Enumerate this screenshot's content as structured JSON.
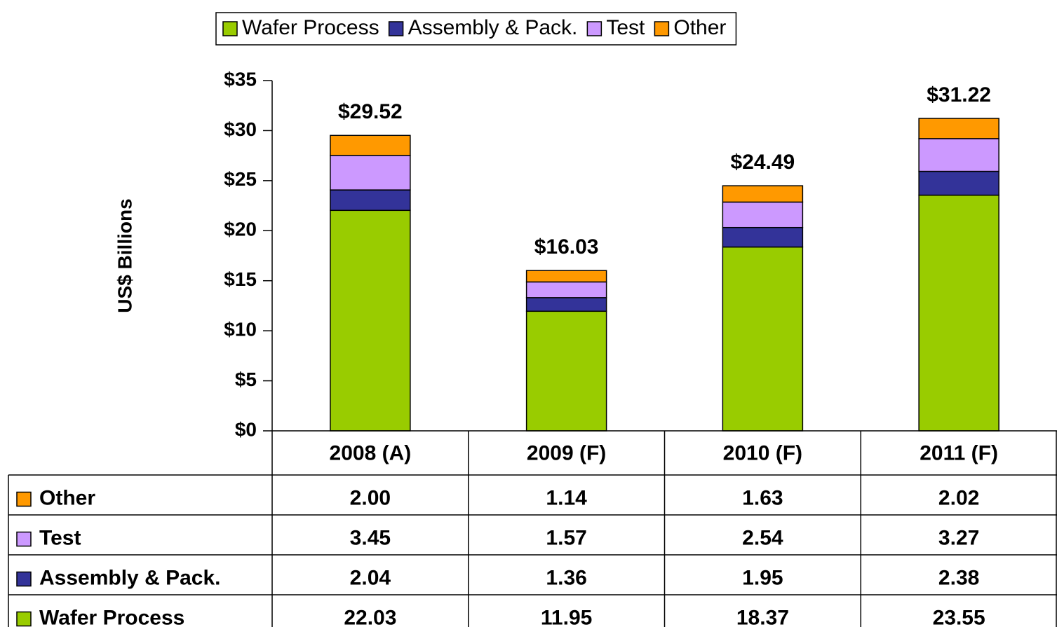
{
  "chart_data": {
    "type": "stacked_bar",
    "y_label": "US$ Billions",
    "categories": [
      "2008 (A)",
      "2009 (F)",
      "2010 (F)",
      "2011 (F)"
    ],
    "series": [
      {
        "name": "Wafer Process",
        "color": "#99cc00",
        "values": [
          22.03,
          11.95,
          18.37,
          23.55
        ]
      },
      {
        "name": "Assembly & Pack.",
        "color": "#333399",
        "values": [
          2.04,
          1.36,
          1.95,
          2.38
        ]
      },
      {
        "name": "Test",
        "color": "#cc99ff",
        "values": [
          3.45,
          1.57,
          2.54,
          3.27
        ]
      },
      {
        "name": "Other",
        "color": "#ff9900",
        "values": [
          2.0,
          1.14,
          1.63,
          2.02
        ],
        "value_labels": [
          "2.00",
          "1.14",
          "1.63",
          "2.02"
        ]
      }
    ],
    "totals": {
      "values": [
        29.52,
        16.03,
        24.49,
        31.22
      ],
      "value_labels": [
        "$29.52",
        "$16.03",
        "$24.49",
        "$31.22"
      ]
    },
    "ylim": [
      0,
      35
    ],
    "yticks": [
      {
        "value": 0,
        "label": "$0"
      },
      {
        "value": 5,
        "label": "$5"
      },
      {
        "value": 10,
        "label": "$10"
      },
      {
        "value": 15,
        "label": "$15"
      },
      {
        "value": 20,
        "label": "$20"
      },
      {
        "value": 25,
        "label": "$25"
      },
      {
        "value": 30,
        "label": "$30"
      },
      {
        "value": 35,
        "label": "$35"
      }
    ],
    "legend": "top",
    "data_table": true
  }
}
